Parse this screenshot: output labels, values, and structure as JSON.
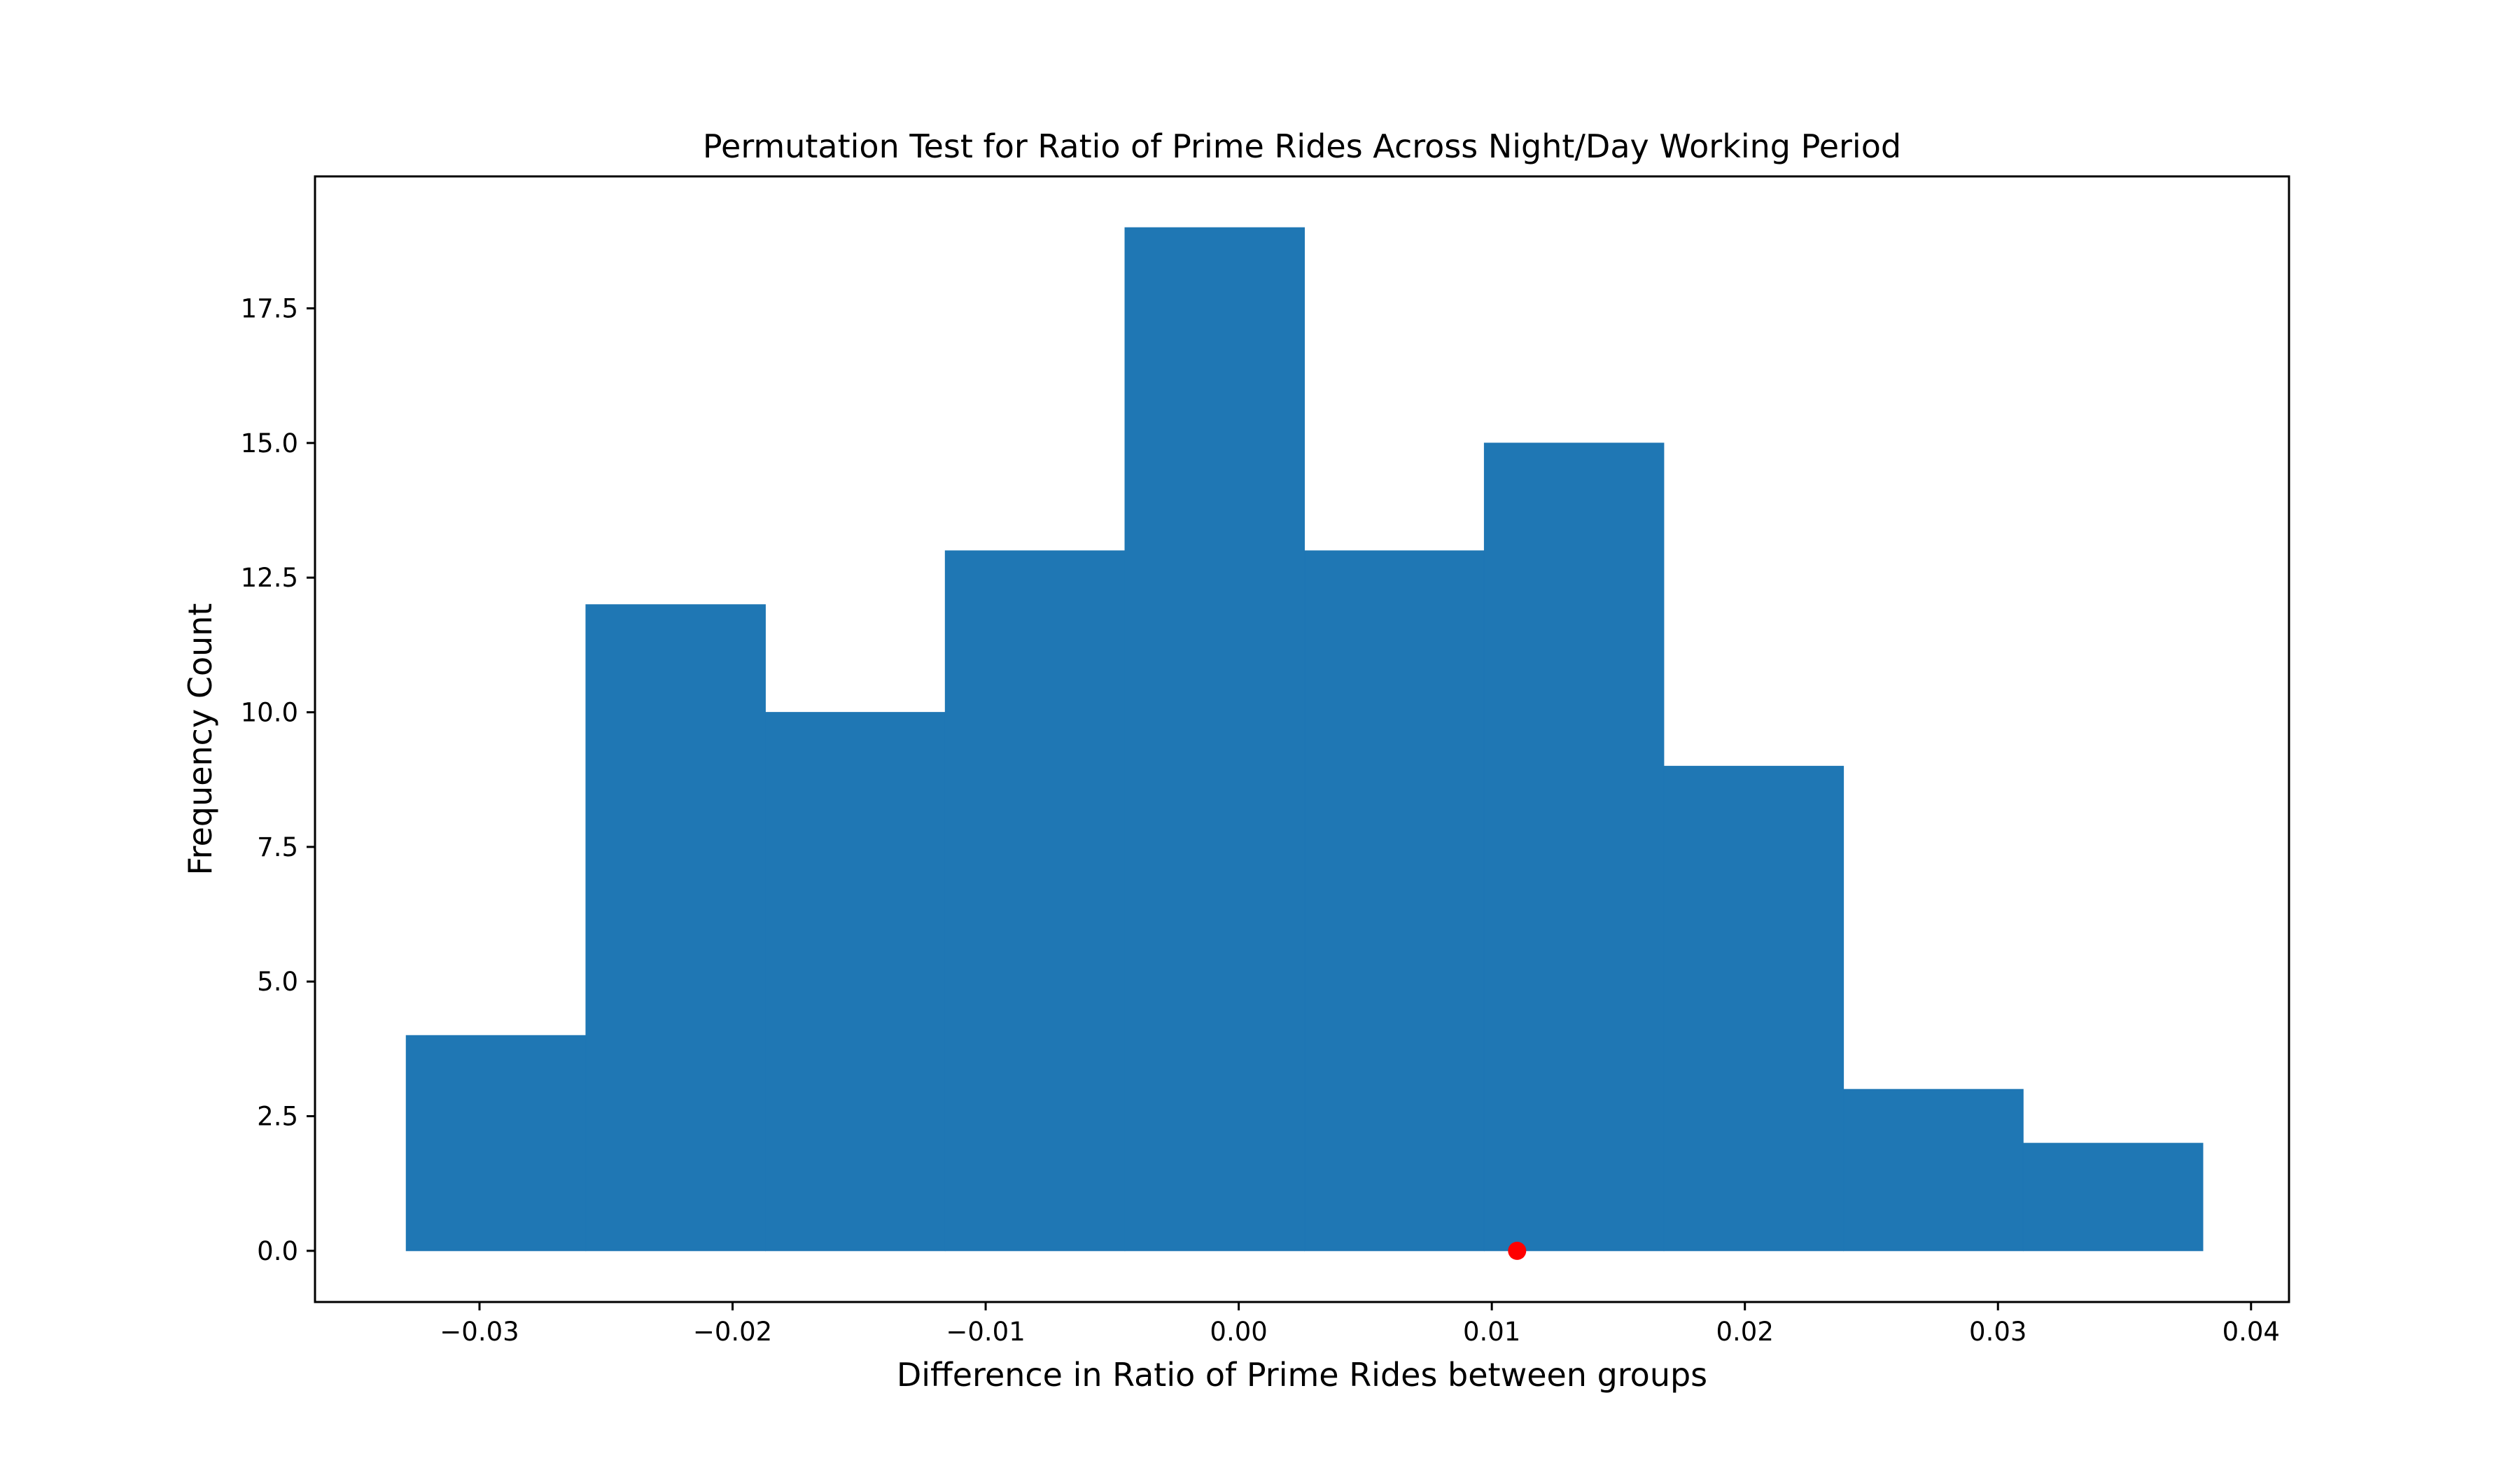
{
  "chart_data": {
    "type": "bar",
    "title": "Permutation Test for Ratio of Prime Rides Across Night/Day Working Period",
    "xlabel": "Difference in Ratio of Prime Rides between groups",
    "ylabel": "Frequency Count",
    "xlim": [
      -0.0365,
      0.0415
    ],
    "ylim": [
      -0.95,
      19.95
    ],
    "xticks": [
      -0.03,
      -0.02,
      -0.01,
      0.0,
      0.01,
      0.02,
      0.03,
      0.04
    ],
    "xtick_labels": [
      "−0.03",
      "−0.02",
      "−0.01",
      "0.00",
      "0.01",
      "0.02",
      "0.03",
      "0.04"
    ],
    "yticks": [
      0.0,
      2.5,
      5.0,
      7.5,
      10.0,
      12.5,
      15.0,
      17.5
    ],
    "ytick_labels": [
      "0.0",
      "2.5",
      "5.0",
      "7.5",
      "10.0",
      "12.5",
      "15.0",
      "17.5"
    ],
    "bin_edges": [
      -0.0329,
      -0.0258,
      -0.0187,
      -0.0116,
      -0.0045,
      0.0026,
      0.0097,
      0.0168,
      0.0239,
      0.031,
      0.0381
    ],
    "counts": [
      4,
      12,
      10,
      13,
      19,
      13,
      15,
      9,
      3,
      2
    ],
    "bar_color": "#1f77b4",
    "observed_point": {
      "x": 0.011,
      "y": 0.0,
      "color": "#ff0000"
    },
    "grid": false,
    "legend": "none"
  }
}
